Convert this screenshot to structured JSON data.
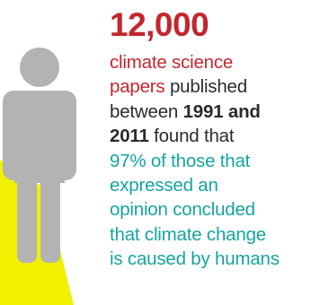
{
  "colors": {
    "accent_red": "#c4262e",
    "text_dark": "#2b2b2b",
    "accent_teal": "#17a3a3",
    "figure_gray": "#b3b3b3",
    "spotlight_yellow": "#f0f000"
  },
  "icons": {
    "person": "person-silhouette-icon",
    "spotlight": "spotlight-beam"
  },
  "infographic": {
    "headline": "12,000",
    "lines": [
      [
        {
          "text": "climate science",
          "color": "accent_red",
          "bold": false
        }
      ],
      [
        {
          "text": "papers",
          "color": "accent_red",
          "bold": false
        },
        {
          "text": " published",
          "color": "text_dark",
          "bold": false
        }
      ],
      [
        {
          "text": "between ",
          "color": "text_dark",
          "bold": false
        },
        {
          "text": "1991 and",
          "color": "text_dark",
          "bold": true
        }
      ],
      [
        {
          "text": "2011",
          "color": "text_dark",
          "bold": true
        },
        {
          "text": " found that",
          "color": "text_dark",
          "bold": false
        }
      ],
      [
        {
          "text": "97% of those that",
          "color": "accent_teal",
          "bold": false
        }
      ],
      [
        {
          "text": "expressed an",
          "color": "accent_teal",
          "bold": false
        }
      ],
      [
        {
          "text": "opinion concluded",
          "color": "accent_teal",
          "bold": false
        }
      ],
      [
        {
          "text": "that climate change",
          "color": "accent_teal",
          "bold": false
        }
      ],
      [
        {
          "text": "is caused by humans",
          "color": "accent_teal",
          "bold": false
        }
      ]
    ]
  }
}
